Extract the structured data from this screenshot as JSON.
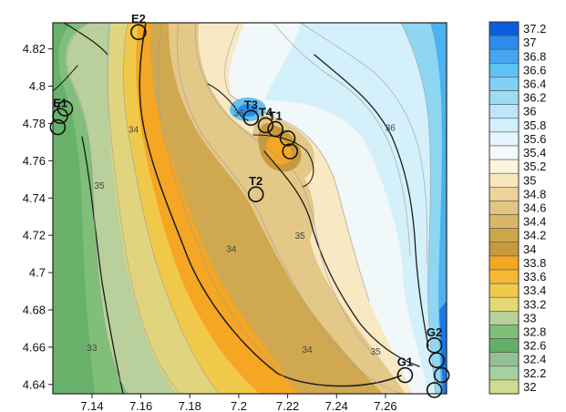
{
  "chart_data": {
    "type": "heatmap",
    "subtype": "filled-contour-map",
    "xlim": [
      7.124,
      7.285
    ],
    "ylim": [
      4.635,
      4.834
    ],
    "x_ticks": [
      7.14,
      7.16,
      7.18,
      7.2,
      7.22,
      7.24,
      7.26
    ],
    "x_tick_labels": [
      "7.14",
      "7.16",
      "7.18",
      "7.2",
      "7.22",
      "7.24",
      "7.26"
    ],
    "y_ticks": [
      4.64,
      4.66,
      4.68,
      4.7,
      4.72,
      4.74,
      4.76,
      4.78,
      4.8,
      4.82
    ],
    "y_tick_labels": [
      "4.64",
      "4.66",
      "4.68",
      "4.7",
      "4.72",
      "4.74",
      "4.76",
      "4.78",
      "4.8",
      "4.82"
    ],
    "colorbar": {
      "placement": "right",
      "levels": [
        37.2,
        37,
        36.8,
        36.6,
        36.4,
        36.2,
        36,
        35.8,
        35.6,
        35.4,
        35.2,
        35,
        34.8,
        34.6,
        34.4,
        34.2,
        34,
        33.8,
        33.6,
        33.4,
        33.2,
        33,
        32.8,
        32.6,
        32.4,
        32.2,
        32
      ],
      "labels": [
        "37.2",
        "37",
        "36.8",
        "36.6",
        "36.4",
        "36.2",
        "36",
        "35.8",
        "35.6",
        "35.4",
        "35.2",
        "35",
        "34.8",
        "34.6",
        "34.4",
        "34.2",
        "34",
        "33.8",
        "33.6",
        "33.4",
        "33.2",
        "33",
        "32.8",
        "32.6",
        "32.4",
        "32.2",
        "32"
      ],
      "colors": [
        "#0a5ce0",
        "#2a8cec",
        "#44a6f0",
        "#5ec2f2",
        "#7ed0f4",
        "#9edcf6",
        "#bde7f8",
        "#d4f0fa",
        "#e5f5fb",
        "#f4f9fa",
        "#fbf3dd",
        "#f7e6bd",
        "#ecd49a",
        "#e2c67f",
        "#d8b865",
        "#cea64a",
        "#c89a3e",
        "#f5a623",
        "#f4b934",
        "#f0c94a",
        "#e6d775",
        "#b7cf98",
        "#7fbf78",
        "#64ae66",
        "#93c193",
        "#a8cfa0",
        "#cddc8e"
      ]
    },
    "contour_labels": [
      {
        "text": "34",
        "x": 7.157,
        "y": 4.775
      },
      {
        "text": "36",
        "x": 7.2,
        "y": 4.784
      },
      {
        "text": "36",
        "x": 7.262,
        "y": 4.776
      },
      {
        "text": "35",
        "x": 7.143,
        "y": 4.745
      },
      {
        "text": "35",
        "x": 7.225,
        "y": 4.718
      },
      {
        "text": "34",
        "x": 7.197,
        "y": 4.711
      },
      {
        "text": "33",
        "x": 7.14,
        "y": 4.658
      },
      {
        "text": "34",
        "x": 7.228,
        "y": 4.657
      },
      {
        "text": "35",
        "x": 7.256,
        "y": 4.656
      }
    ],
    "stations": [
      {
        "label": "E2",
        "x": 7.159,
        "y": 4.829
      },
      {
        "label": "E1",
        "x": 7.127,
        "y": 4.784
      },
      {
        "label": "",
        "x": 7.129,
        "y": 4.788
      },
      {
        "label": "",
        "x": 7.126,
        "y": 4.778
      },
      {
        "label": "T3",
        "x": 7.205,
        "y": 4.783
      },
      {
        "label": "T4",
        "x": 7.211,
        "y": 4.779
      },
      {
        "label": "T1",
        "x": 7.215,
        "y": 4.777
      },
      {
        "label": "",
        "x": 7.22,
        "y": 4.772
      },
      {
        "label": "",
        "x": 7.221,
        "y": 4.765
      },
      {
        "label": "T2",
        "x": 7.207,
        "y": 4.742
      },
      {
        "label": "G1",
        "x": 7.268,
        "y": 4.645
      },
      {
        "label": "G2",
        "x": 7.28,
        "y": 4.661
      },
      {
        "label": "",
        "x": 7.281,
        "y": 4.653
      },
      {
        "label": "",
        "x": 7.283,
        "y": 4.645
      },
      {
        "label": "",
        "x": 7.28,
        "y": 4.637
      }
    ]
  }
}
